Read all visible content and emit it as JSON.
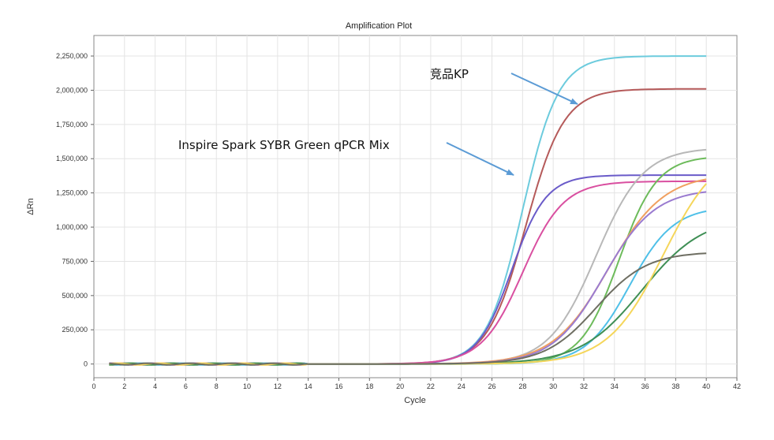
{
  "chart_data": {
    "type": "line",
    "title": "Amplification Plot",
    "xlabel": "Cycle",
    "ylabel": "ΔRn",
    "xlim": [
      0,
      42
    ],
    "ylim": [
      -100000,
      2400000
    ],
    "x_ticks": [
      0,
      2,
      4,
      6,
      8,
      10,
      12,
      14,
      16,
      18,
      20,
      22,
      24,
      26,
      28,
      30,
      32,
      34,
      36,
      38,
      40,
      42
    ],
    "y_ticks": [
      0,
      250000,
      500000,
      750000,
      1000000,
      1250000,
      1500000,
      1750000,
      2000000,
      2250000
    ],
    "y_tick_labels": [
      "0",
      "250,000",
      "500,000",
      "750,000",
      "1,000,000",
      "1,250,000",
      "1,500,000",
      "1,750,000",
      "2,000,000",
      "2,250,000"
    ],
    "grid": true,
    "series": [
      {
        "name": "cyan",
        "color": "#6CCBDD",
        "plateau": 2250000,
        "midpoint": 28.0,
        "slope": 0.85
      },
      {
        "name": "brown",
        "color": "#B55A5A",
        "plateau": 2010000,
        "midpoint": 28.2,
        "slope": 0.8
      },
      {
        "name": "purple",
        "color": "#6A5BC9",
        "plateau": 1380000,
        "midpoint": 27.3,
        "slope": 0.9
      },
      {
        "name": "magenta",
        "color": "#D94FA0",
        "plateau": 1335000,
        "midpoint": 28.0,
        "slope": 0.75
      },
      {
        "name": "light-gray",
        "color": "#B8B8B8",
        "plateau": 1580000,
        "midpoint": 32.8,
        "slope": 0.65
      },
      {
        "name": "green",
        "color": "#6DBB5B",
        "plateau": 1520000,
        "midpoint": 34.3,
        "slope": 0.8
      },
      {
        "name": "orange",
        "color": "#F0A060",
        "plateau": 1390000,
        "midpoint": 33.6,
        "slope": 0.55
      },
      {
        "name": "violet",
        "color": "#9A7BD0",
        "plateau": 1280000,
        "midpoint": 33.3,
        "slope": 0.6
      },
      {
        "name": "sky-blue",
        "color": "#4FC0E8",
        "plateau": 1150000,
        "midpoint": 35.0,
        "slope": 0.7
      },
      {
        "name": "dark-green",
        "color": "#3F8F55",
        "plateau": 1080000,
        "midpoint": 35.8,
        "slope": 0.5
      },
      {
        "name": "yellow",
        "color": "#F5D65A",
        "plateau": 1600000,
        "midpoint": 37.2,
        "slope": 0.55
      },
      {
        "name": "dark-gray",
        "color": "#6E6E62",
        "plateau": 820000,
        "midpoint": 32.8,
        "slope": 0.6
      }
    ],
    "annotations": [
      {
        "text": "竞品KP",
        "points_to_series": "cyan"
      },
      {
        "text": "Inspire Spark SYBR Green qPCR Mix",
        "points_to_series": "purple"
      }
    ]
  }
}
